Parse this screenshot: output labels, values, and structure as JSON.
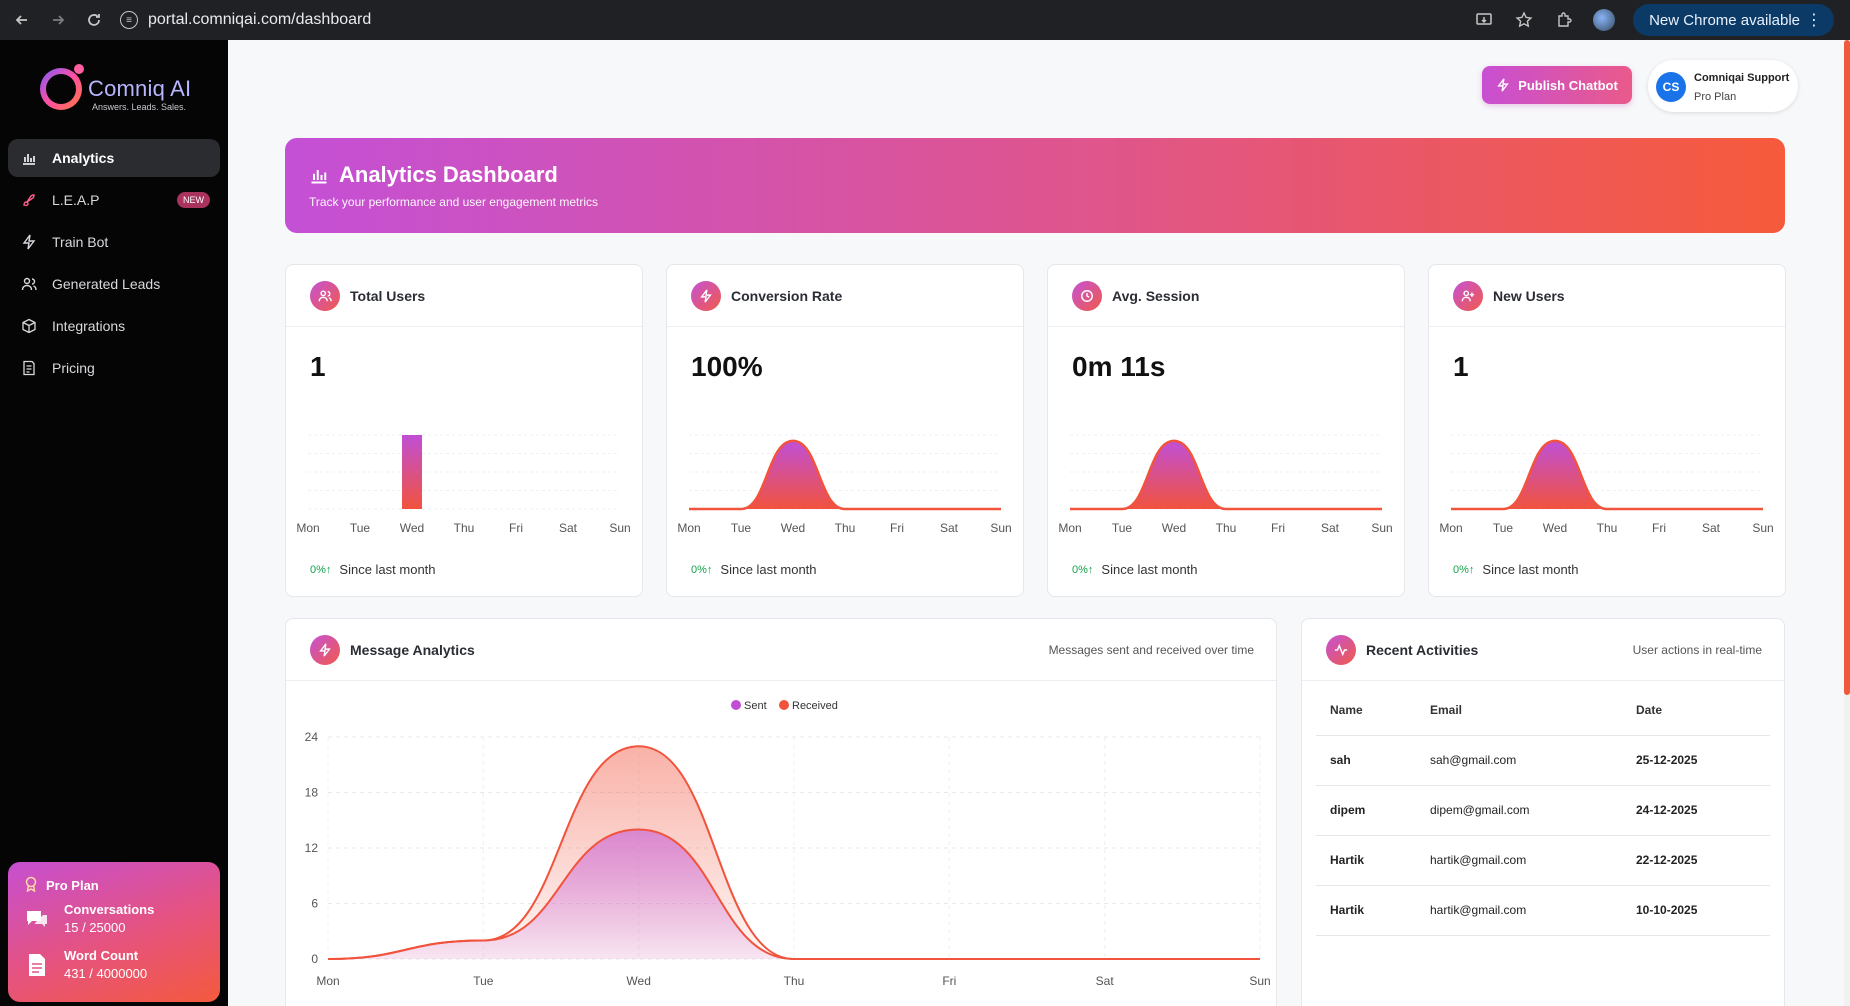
{
  "browser": {
    "url": "portal.comniqai.com/dashboard",
    "update_label": "New Chrome available"
  },
  "sidebar": {
    "brand": "Comniq AI",
    "tagline": "Answers. Leads. Sales.",
    "items": [
      {
        "label": "Analytics",
        "icon": "bar-chart-icon",
        "active": true
      },
      {
        "label": "L.E.A.P",
        "icon": "rocket-icon",
        "badge": "NEW"
      },
      {
        "label": "Train Bot",
        "icon": "bolt-icon"
      },
      {
        "label": "Generated Leads",
        "icon": "users-icon"
      },
      {
        "label": "Integrations",
        "icon": "box-icon"
      },
      {
        "label": "Pricing",
        "icon": "receipt-icon"
      }
    ],
    "plan": {
      "title": "Pro Plan",
      "conversations_label": "Conversations",
      "conversations_value": "15 / 25000",
      "words_label": "Word Count",
      "words_value": "431 / 4000000"
    }
  },
  "header": {
    "publish_label": "Publish Chatbot",
    "user_initials": "CS",
    "user_name": "Comniqai Support",
    "user_plan": "Pro Plan"
  },
  "banner": {
    "title": "Analytics Dashboard",
    "subtitle": "Track your performance and user engagement metrics"
  },
  "days": [
    "Mon",
    "Tue",
    "Wed",
    "Thu",
    "Fri",
    "Sat",
    "Sun"
  ],
  "stats": [
    {
      "title": "Total Users",
      "value": "1",
      "change": "0%↑",
      "since": "Since last month",
      "chart": "bar"
    },
    {
      "title": "Conversion Rate",
      "value": "100%",
      "change": "0%↑",
      "since": "Since last month",
      "chart": "area"
    },
    {
      "title": "Avg. Session",
      "value": "0m 11s",
      "change": "0%↑",
      "since": "Since last month",
      "chart": "area"
    },
    {
      "title": "New Users",
      "value": "1",
      "change": "0%↑",
      "since": "Since last month",
      "chart": "area"
    }
  ],
  "messages": {
    "title": "Message Analytics",
    "subtitle": "Messages sent and received over time"
  },
  "activities": {
    "title": "Recent Activities",
    "subtitle": "User actions in real-time",
    "columns": [
      "Name",
      "Email",
      "Date"
    ],
    "rows": [
      [
        "sah",
        "sah@gmail.com",
        "25-12-2025"
      ],
      [
        "dipem",
        "dipem@gmail.com",
        "24-12-2025"
      ],
      [
        "Hartik",
        "hartik@gmail.com",
        "22-12-2025"
      ],
      [
        "Hartik",
        "hartik@gmail.com",
        "10-10-2025"
      ]
    ]
  },
  "colors": {
    "sent": "#c04fd6",
    "received": "#f1533d",
    "accent_from": "#c450d6",
    "accent_to": "#f65a3b"
  },
  "chart_data": [
    {
      "type": "bar",
      "categories": [
        "Mon",
        "Tue",
        "Wed",
        "Thu",
        "Fri",
        "Sat",
        "Sun"
      ],
      "values": [
        0,
        0,
        1,
        0,
        0,
        0,
        0
      ]
    },
    {
      "type": "area",
      "categories": [
        "Mon",
        "Tue",
        "Wed",
        "Thu",
        "Fri",
        "Sat",
        "Sun"
      ],
      "values": [
        0,
        0,
        1,
        0,
        0,
        0,
        0
      ]
    },
    {
      "type": "area",
      "categories": [
        "Mon",
        "Tue",
        "Wed",
        "Thu",
        "Fri",
        "Sat",
        "Sun"
      ],
      "values": [
        0,
        0,
        1,
        0,
        0,
        0,
        0
      ]
    },
    {
      "type": "area",
      "categories": [
        "Mon",
        "Tue",
        "Wed",
        "Thu",
        "Fri",
        "Sat",
        "Sun"
      ],
      "values": [
        0,
        0,
        1,
        0,
        0,
        0,
        0
      ]
    },
    {
      "type": "area",
      "categories": [
        "Mon",
        "Tue",
        "Wed",
        "Thu",
        "Fri",
        "Sat",
        "Sun"
      ],
      "series": [
        {
          "name": "Sent",
          "values": [
            0,
            2,
            14,
            0,
            0,
            0,
            0
          ]
        },
        {
          "name": "Received",
          "values": [
            0,
            2,
            23,
            0,
            0,
            0,
            0
          ]
        }
      ],
      "yticks": [
        0,
        6,
        12,
        18,
        24
      ],
      "ylim": [
        0,
        24
      ],
      "grid": true,
      "legend": "top-center"
    }
  ]
}
